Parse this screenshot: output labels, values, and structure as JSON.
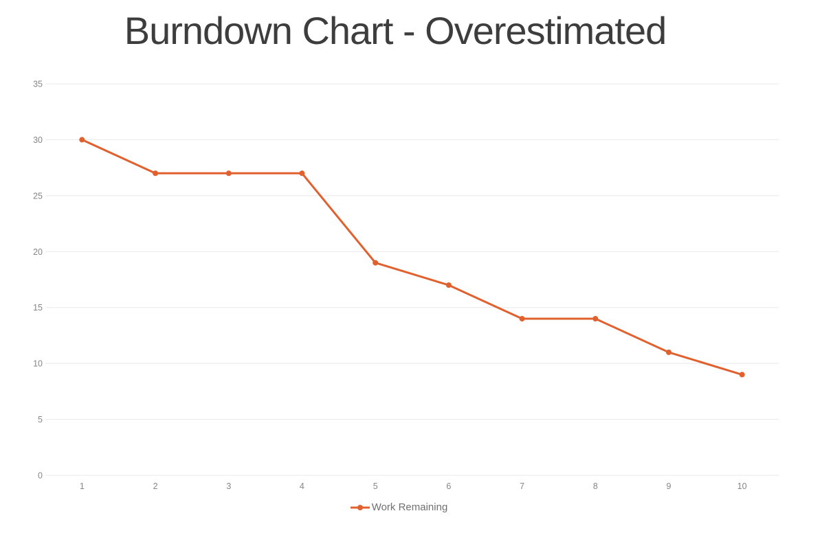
{
  "title": "Burndown Chart - Overestimated",
  "legend": {
    "label": "Work Remaining"
  },
  "colors": {
    "line": "#e0602e",
    "marker": "#e0602e",
    "title": "#3d3d3d",
    "axis_label": "#868686",
    "gridline": "#e8e8e8",
    "legend_text": "#6f6f6f",
    "background": "#ffffff"
  },
  "chart_data": {
    "type": "line",
    "title": "Burndown Chart - Overestimated",
    "x": [
      1,
      2,
      3,
      4,
      5,
      6,
      7,
      8,
      9,
      10
    ],
    "categories": [
      "1",
      "2",
      "3",
      "4",
      "5",
      "6",
      "7",
      "8",
      "9",
      "10"
    ],
    "series": [
      {
        "name": "Work Remaining",
        "values": [
          30,
          27,
          27,
          27,
          19,
          17,
          14,
          14,
          11,
          9
        ]
      }
    ],
    "xlabel": "",
    "ylabel": "",
    "ylim": [
      0,
      35
    ],
    "ytick_step": 5,
    "yticks": [
      0,
      5,
      10,
      15,
      20,
      25,
      30,
      35
    ],
    "grid": true,
    "legend_position": "bottom",
    "marker": "circle",
    "line_width": 3,
    "marker_radius": 4
  }
}
